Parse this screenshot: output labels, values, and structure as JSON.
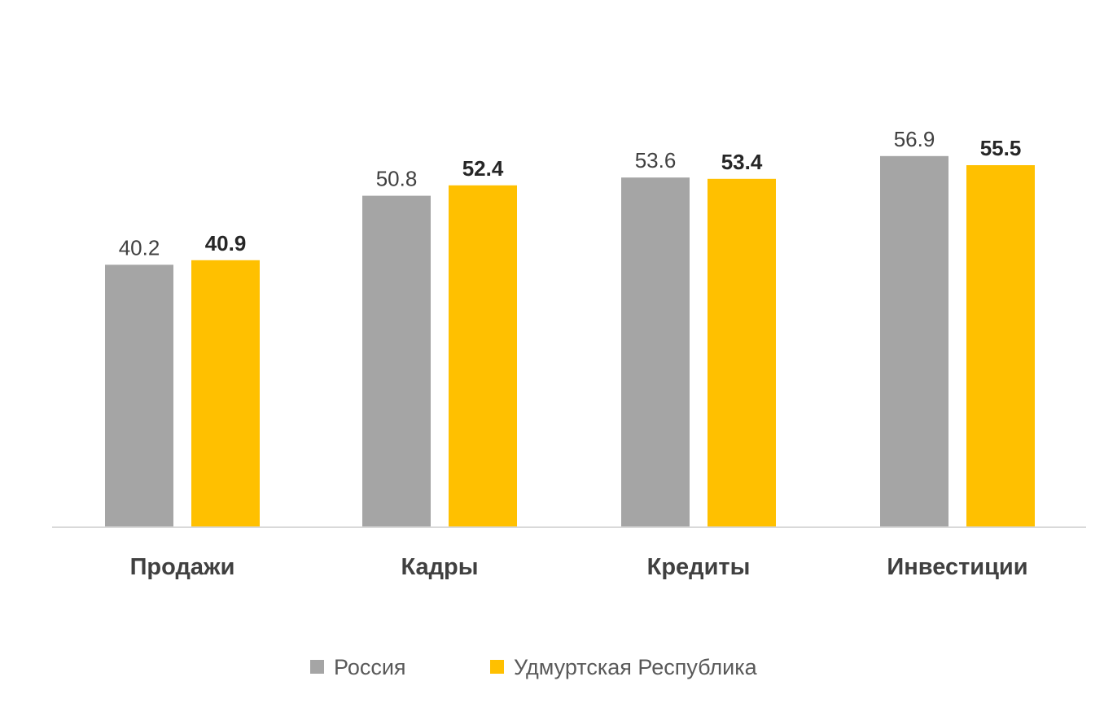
{
  "chart_data": {
    "type": "bar",
    "title": "",
    "xlabel": "",
    "ylabel": "",
    "categories": [
      "Продажи",
      "Кадры",
      "Кредиты",
      "Инвестиции"
    ],
    "series": [
      {
        "name": "Россия",
        "color": "#a5a5a5",
        "values": [
          40.2,
          50.8,
          53.6,
          56.9
        ],
        "labels": [
          "40.2",
          "50.8",
          "53.6",
          "56.9"
        ]
      },
      {
        "name": "Удмуртская Республика",
        "color": "#ffc000",
        "values": [
          40.9,
          52.4,
          53.4,
          55.5
        ],
        "labels": [
          "40.9",
          "52.4",
          "53.4",
          "55.5"
        ]
      }
    ],
    "ylim": [
      0,
      60
    ],
    "grid": false,
    "legend": "bottom",
    "axis_color": "#d9d9d9"
  }
}
